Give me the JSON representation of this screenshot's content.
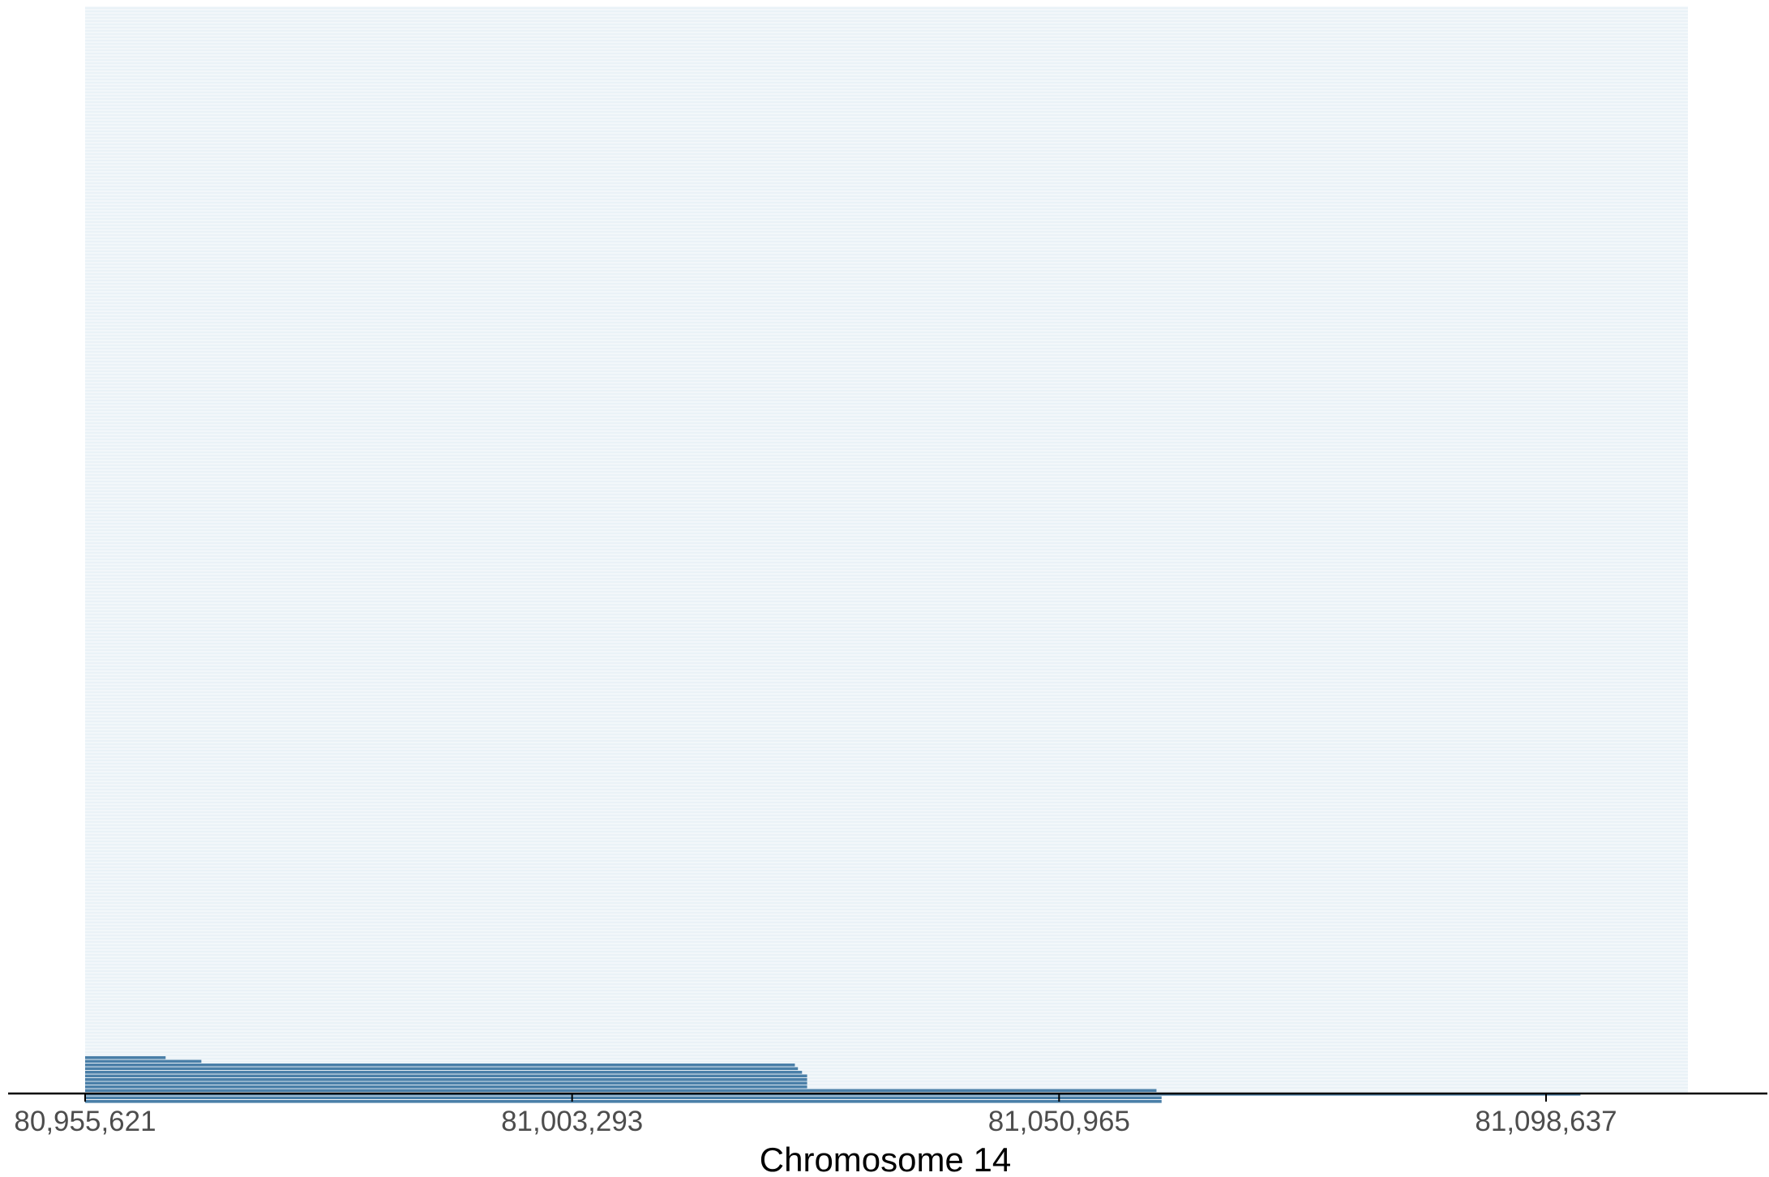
{
  "chart_data": {
    "type": "bar",
    "orientation": "horizontal-segments",
    "xlabel": "Chromosome 14",
    "ylabel": "",
    "title": "",
    "xlim": [
      80955621,
      81146000
    ],
    "x_ticks": [
      80955621,
      81003293,
      81050965,
      81098637
    ],
    "x_tick_labels": [
      "80,955,621",
      "81,003,293",
      "81,050,965",
      "81,098,637"
    ],
    "colors": {
      "background_band": "#f2f7fa",
      "background_line": "#e3eef4",
      "segment": "#4a7fa8",
      "axis": "#000000",
      "tick_label": "#4d4d4d"
    },
    "segments": [
      {
        "start": 80955621,
        "end": 80963500
      },
      {
        "start": 80955621,
        "end": 80967000
      },
      {
        "start": 80955621,
        "end": 81025100
      },
      {
        "start": 80955621,
        "end": 81025400
      },
      {
        "start": 80955621,
        "end": 81025800
      },
      {
        "start": 80955621,
        "end": 81026300
      },
      {
        "start": 80955621,
        "end": 81026300
      },
      {
        "start": 80955621,
        "end": 81026300
      },
      {
        "start": 80955621,
        "end": 81026300
      },
      {
        "start": 80955621,
        "end": 81060500
      },
      {
        "start": 80955621,
        "end": 81102000
      },
      {
        "start": 80955621,
        "end": 81061000
      },
      {
        "start": 80955621,
        "end": 81061000
      }
    ]
  }
}
